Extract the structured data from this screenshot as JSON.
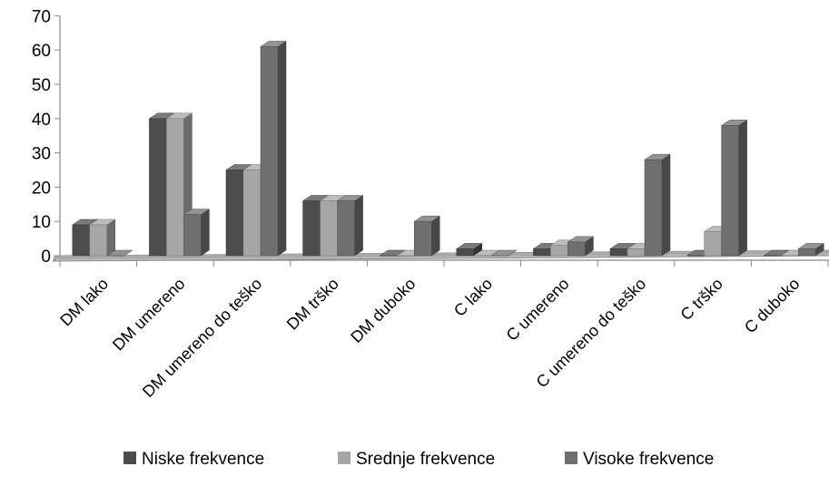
{
  "chart_data": {
    "type": "bar",
    "style": "3d-clustered-column",
    "categories": [
      "DM lako",
      "DM umereno",
      "DM umereno do teško",
      "DM trško",
      "DM duboko",
      "C lako",
      "C umereno",
      "C umereno do teško",
      "C trško",
      "C duboko"
    ],
    "series": [
      {
        "name": "Niske frekvence",
        "color": "#4d4d4d",
        "values": [
          9,
          40,
          25,
          16,
          0,
          2,
          2,
          2,
          0,
          0
        ]
      },
      {
        "name": "Srednje frekvence",
        "color": "#a6a6a6",
        "values": [
          9,
          40,
          25,
          16,
          0,
          0,
          3,
          2,
          7,
          0
        ]
      },
      {
        "name": "Visoke frekvence",
        "color": "#6f6f6f",
        "values": [
          0,
          12,
          61,
          16,
          10,
          0,
          4,
          28,
          38,
          2
        ]
      }
    ],
    "y_ticks": [
      "0",
      "10",
      "20",
      "30",
      "40",
      "50",
      "60",
      "70"
    ],
    "ylim": [
      0,
      70
    ],
    "grid": false,
    "legend_position": "bottom"
  }
}
